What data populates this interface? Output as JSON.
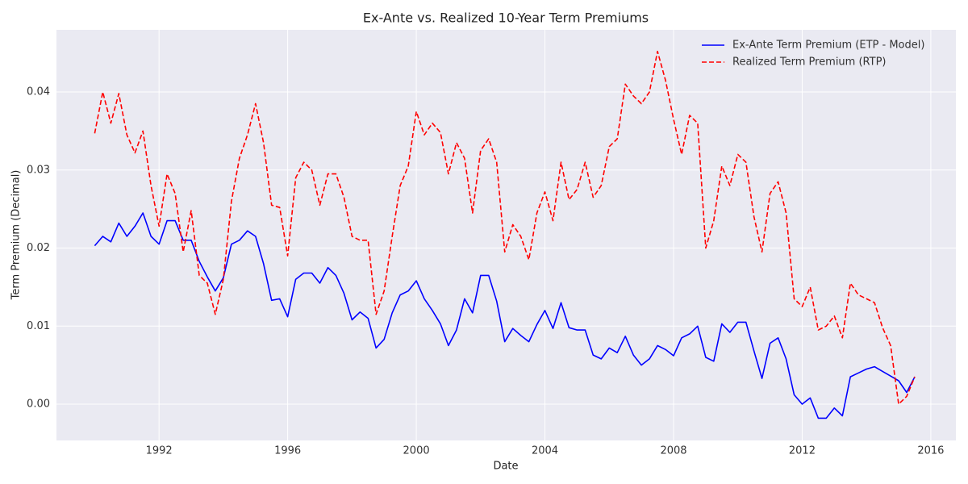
{
  "chart_data": {
    "type": "line",
    "title": "Ex-Ante vs. Realized 10-Year Term Premiums",
    "xlabel": "Date",
    "ylabel": "Term Premium (Decimal)",
    "x": [
      1990.0,
      1990.25,
      1990.5,
      1990.75,
      1991.0,
      1991.25,
      1991.5,
      1991.75,
      1992.0,
      1992.25,
      1992.5,
      1992.75,
      1993.0,
      1993.25,
      1993.5,
      1993.75,
      1994.0,
      1994.25,
      1994.5,
      1994.75,
      1995.0,
      1995.25,
      1995.5,
      1995.75,
      1996.0,
      1996.25,
      1996.5,
      1996.75,
      1997.0,
      1997.25,
      1997.5,
      1997.75,
      1998.0,
      1998.25,
      1998.5,
      1998.75,
      1999.0,
      1999.25,
      1999.5,
      1999.75,
      2000.0,
      2000.25,
      2000.5,
      2000.75,
      2001.0,
      2001.25,
      2001.5,
      2001.75,
      2002.0,
      2002.25,
      2002.5,
      2002.75,
      2003.0,
      2003.25,
      2003.5,
      2003.75,
      2004.0,
      2004.25,
      2004.5,
      2004.75,
      2005.0,
      2005.25,
      2005.5,
      2005.75,
      2006.0,
      2006.25,
      2006.5,
      2006.75,
      2007.0,
      2007.25,
      2007.5,
      2007.75,
      2008.0,
      2008.25,
      2008.5,
      2008.75,
      2009.0,
      2009.25,
      2009.5,
      2009.75,
      2010.0,
      2010.25,
      2010.5,
      2010.75,
      2011.0,
      2011.25,
      2011.5,
      2011.75,
      2012.0,
      2012.25,
      2012.5,
      2012.75,
      2013.0,
      2013.25,
      2013.5,
      2013.75,
      2014.0,
      2014.25,
      2014.5,
      2014.75,
      2015.0,
      2015.25,
      2015.5
    ],
    "series": [
      {
        "name": "Ex-Ante Term Premium (ETP - Model)",
        "color": "#0000ff",
        "linestyle": "solid",
        "values": [
          0.0203,
          0.0215,
          0.0208,
          0.0232,
          0.0215,
          0.0228,
          0.0245,
          0.0215,
          0.0205,
          0.0235,
          0.0235,
          0.021,
          0.021,
          0.0183,
          0.0163,
          0.0145,
          0.0162,
          0.0205,
          0.021,
          0.0222,
          0.0215,
          0.018,
          0.0133,
          0.0135,
          0.0112,
          0.016,
          0.0168,
          0.0168,
          0.0155,
          0.0175,
          0.0165,
          0.0142,
          0.0108,
          0.0118,
          0.011,
          0.0072,
          0.0083,
          0.0117,
          0.014,
          0.0145,
          0.0158,
          0.0135,
          0.012,
          0.0103,
          0.0075,
          0.0095,
          0.0135,
          0.0117,
          0.0165,
          0.0165,
          0.0132,
          0.008,
          0.0097,
          0.0088,
          0.008,
          0.0102,
          0.012,
          0.0097,
          0.013,
          0.0098,
          0.0095,
          0.0095,
          0.0063,
          0.0058,
          0.0072,
          0.0066,
          0.0087,
          0.0063,
          0.005,
          0.0058,
          0.0075,
          0.007,
          0.0062,
          0.0085,
          0.009,
          0.01,
          0.006,
          0.0055,
          0.0103,
          0.0092,
          0.0105,
          0.0105,
          0.0068,
          0.0033,
          0.0078,
          0.0085,
          0.0058,
          0.0012,
          0.0,
          0.0008,
          -0.0018,
          -0.0018,
          -0.0005,
          -0.0015,
          0.0035,
          0.004,
          0.0045,
          0.0048,
          0.0042,
          0.0036,
          0.003,
          0.0015,
          0.0035
        ]
      },
      {
        "name": "Realized Term Premium (RTP)",
        "color": "#ff0000",
        "linestyle": "dashed",
        "values": [
          0.0347,
          0.04,
          0.036,
          0.0398,
          0.0345,
          0.0322,
          0.035,
          0.028,
          0.0228,
          0.0295,
          0.027,
          0.0195,
          0.0248,
          0.0165,
          0.0155,
          0.0115,
          0.016,
          0.026,
          0.0315,
          0.0345,
          0.0385,
          0.0335,
          0.0255,
          0.0252,
          0.019,
          0.029,
          0.031,
          0.03,
          0.0255,
          0.0295,
          0.0295,
          0.0265,
          0.0215,
          0.021,
          0.021,
          0.0115,
          0.0145,
          0.0215,
          0.028,
          0.0305,
          0.0375,
          0.0345,
          0.036,
          0.0348,
          0.0295,
          0.0335,
          0.0315,
          0.0245,
          0.0325,
          0.034,
          0.031,
          0.0195,
          0.023,
          0.0215,
          0.0185,
          0.0245,
          0.0272,
          0.0235,
          0.031,
          0.0262,
          0.0275,
          0.031,
          0.0265,
          0.028,
          0.033,
          0.034,
          0.041,
          0.0395,
          0.0385,
          0.04,
          0.0452,
          0.0415,
          0.0365,
          0.032,
          0.037,
          0.036,
          0.02,
          0.0235,
          0.0305,
          0.028,
          0.032,
          0.031,
          0.024,
          0.0195,
          0.027,
          0.0285,
          0.0245,
          0.0135,
          0.0125,
          0.015,
          0.0095,
          0.01,
          0.0113,
          0.0085,
          0.0155,
          0.014,
          0.0135,
          0.013,
          0.0098,
          0.0075,
          0.0,
          0.001,
          0.0035
        ]
      }
    ],
    "xlim": [
      1988.81,
      2016.78
    ],
    "xticks": [
      1992,
      1996,
      2000,
      2004,
      2008,
      2012,
      2016
    ],
    "ylim": [
      -0.00465,
      0.04796
    ],
    "yticks": [
      {
        "value": 0,
        "label": "0.00"
      },
      {
        "value": 0.01,
        "label": "0.01"
      },
      {
        "value": 0.02,
        "label": "0.02"
      },
      {
        "value": 0.03,
        "label": "0.03"
      },
      {
        "value": 0.04,
        "label": "0.04"
      }
    ],
    "grid": true,
    "legend": "upper right"
  }
}
